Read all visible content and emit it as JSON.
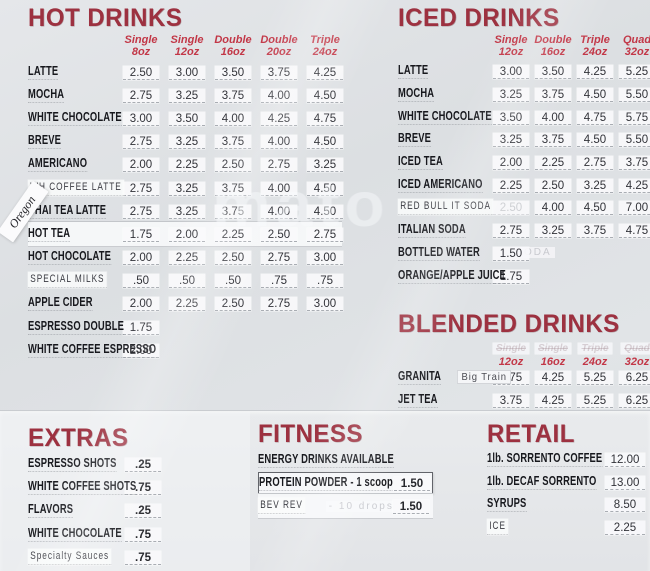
{
  "watermark": "mato",
  "side_sticker": "Oregon",
  "colors": {
    "title_red": "#9d3140",
    "column_red": "#c23747",
    "price_text": "#313238"
  },
  "hot": {
    "title": "HOT DRINKS",
    "columns": [
      {
        "label": "Single",
        "size": "8oz"
      },
      {
        "label": "Single",
        "size": "12oz"
      },
      {
        "label": "Double",
        "size": "16oz"
      },
      {
        "label": "Double",
        "size": "20oz"
      },
      {
        "label": "Triple",
        "size": "24oz"
      }
    ],
    "items": [
      {
        "name": "LATTE",
        "prices": [
          "2.50",
          "3.00",
          "3.50",
          "3.75",
          "4.25"
        ]
      },
      {
        "name": "MOCHA",
        "prices": [
          "2.75",
          "3.25",
          "3.75",
          "4.00",
          "4.50"
        ]
      },
      {
        "name": "WHITE CHOCOLATE",
        "prices": [
          "3.00",
          "3.50",
          "4.00",
          "4.25",
          "4.75"
        ]
      },
      {
        "name": "BREVE",
        "prices": [
          "2.75",
          "3.25",
          "3.75",
          "4.00",
          "4.50"
        ]
      },
      {
        "name": "AMERICANO",
        "prices": [
          "2.00",
          "2.25",
          "2.50",
          "2.75",
          "3.25"
        ]
      },
      {
        "name": "WH COFFEE LATTE",
        "style": "light",
        "prices": [
          "2.75",
          "3.25",
          "3.75",
          "4.00",
          "4.50"
        ]
      },
      {
        "name": "CHAI TEA LATTE",
        "prices": [
          "2.75",
          "3.25",
          "3.75",
          "4.00",
          "4.50"
        ]
      },
      {
        "name": "HOT TEA",
        "strip": true,
        "prices": [
          "1.75",
          "2.00",
          "2.25",
          "2.50",
          "2.75"
        ]
      },
      {
        "name": "HOT CHOCOLATE",
        "prices": [
          "2.00",
          "2.25",
          "2.50",
          "2.75",
          "3.00"
        ]
      },
      {
        "name": "SPECIAL MILKS",
        "style": "light",
        "prices": [
          ".50",
          ".50",
          ".50",
          ".75",
          ".75"
        ]
      },
      {
        "name": "APPLE CIDER",
        "prices": [
          "2.00",
          "2.25",
          "2.50",
          "2.75",
          "3.00"
        ]
      },
      {
        "name": "ESPRESSO DOUBLE",
        "prices": [
          "1.75",
          "",
          "",
          "",
          ""
        ]
      },
      {
        "name": "WHITE COFFEE ESPRESSO",
        "prices": [
          "2.00",
          "",
          "",
          "",
          ""
        ]
      }
    ]
  },
  "iced": {
    "title": "ICED DRINKS",
    "columns": [
      {
        "label": "Single",
        "size": "12oz"
      },
      {
        "label": "Double",
        "size": "16oz"
      },
      {
        "label": "Triple",
        "size": "24oz"
      },
      {
        "label": "Quad",
        "size": "32oz"
      }
    ],
    "items": [
      {
        "name": "LATTE",
        "prices": [
          "3.00",
          "3.50",
          "4.25",
          "5.25"
        ]
      },
      {
        "name": "MOCHA",
        "prices": [
          "3.25",
          "3.75",
          "4.50",
          "5.50"
        ]
      },
      {
        "name": "WHITE CHOCOLATE",
        "prices": [
          "3.50",
          "4.00",
          "4.75",
          "5.75"
        ]
      },
      {
        "name": "BREVE",
        "prices": [
          "3.25",
          "3.75",
          "4.50",
          "5.50"
        ]
      },
      {
        "name": "ICED TEA",
        "prices": [
          "2.00",
          "2.25",
          "2.75",
          "3.75"
        ]
      },
      {
        "name": "ICED AMERICANO",
        "prices": [
          "2.25",
          "2.50",
          "3.25",
          "4.25"
        ]
      },
      {
        "name": "RED BULL IT SODA",
        "style": "light",
        "ghost_cols": [
          0
        ],
        "prices": [
          "2.50",
          "4.00",
          "4.50",
          "7.00"
        ]
      },
      {
        "name": "ITALIAN SODA",
        "prices": [
          "2.75",
          "3.25",
          "3.75",
          "4.75"
        ]
      },
      {
        "name": "BOTTLED WATER",
        "ghost": "SODA",
        "prices": [
          "1.50",
          "",
          "",
          ""
        ]
      },
      {
        "name": "ORANGE/APPLE JUICE",
        "prices": [
          "1.75",
          "",
          "",
          ""
        ]
      }
    ]
  },
  "blended": {
    "title": "BLENDED DRINKS",
    "columns": [
      {
        "label": "Single",
        "size": "12oz",
        "ghost": true
      },
      {
        "label": "Single",
        "size": "16oz",
        "ghost": true
      },
      {
        "label": "Triple",
        "size": "24oz",
        "ghost": true
      },
      {
        "label": "Quad",
        "size": "32oz",
        "ghost": true
      }
    ],
    "items": [
      {
        "name": "GRANITA",
        "sub": "Big Train",
        "prices": [
          "3.75",
          "4.25",
          "5.25",
          "6.25"
        ]
      },
      {
        "name": "JET TEA",
        "prices": [
          "3.75",
          "4.25",
          "5.25",
          "6.25"
        ]
      }
    ]
  },
  "extras": {
    "title": "EXTRAS",
    "items": [
      {
        "name": "ESPRESSO SHOTS",
        "prices": [
          ".25"
        ]
      },
      {
        "name": "WHITE COFFEE SHOTS",
        "prices": [
          ".75"
        ]
      },
      {
        "name": "FLAVORS",
        "prices": [
          ".25"
        ]
      },
      {
        "name": "WHITE CHOCOLATE",
        "prices": [
          ".75"
        ]
      },
      {
        "name": "Specialty Sauces",
        "style": "light",
        "prices": [
          ".75"
        ]
      }
    ]
  },
  "fitness": {
    "title": "FITNESS",
    "items": [
      {
        "name": "ENERGY DRINKS AVAILABLE",
        "prices": [
          ""
        ]
      },
      {
        "name": "PROTEIN POWDER - 1 scoop",
        "boxed": true,
        "prices": [
          "1.50"
        ]
      },
      {
        "name": "BEV REV",
        "style": "light",
        "strip": true,
        "ghost": "- 10 drops",
        "prices": [
          "1.50"
        ]
      }
    ]
  },
  "retail": {
    "title": "RETAIL",
    "items": [
      {
        "name": "1lb. SORRENTO COFFEE",
        "prices": [
          "12.00"
        ]
      },
      {
        "name": "1lb. DECAF SORRENTO",
        "prices": [
          "13.00"
        ]
      },
      {
        "name": "SYRUPS",
        "prices": [
          "8.50"
        ]
      },
      {
        "name": "ICE",
        "style": "light",
        "prices": [
          "2.25"
        ]
      }
    ]
  }
}
